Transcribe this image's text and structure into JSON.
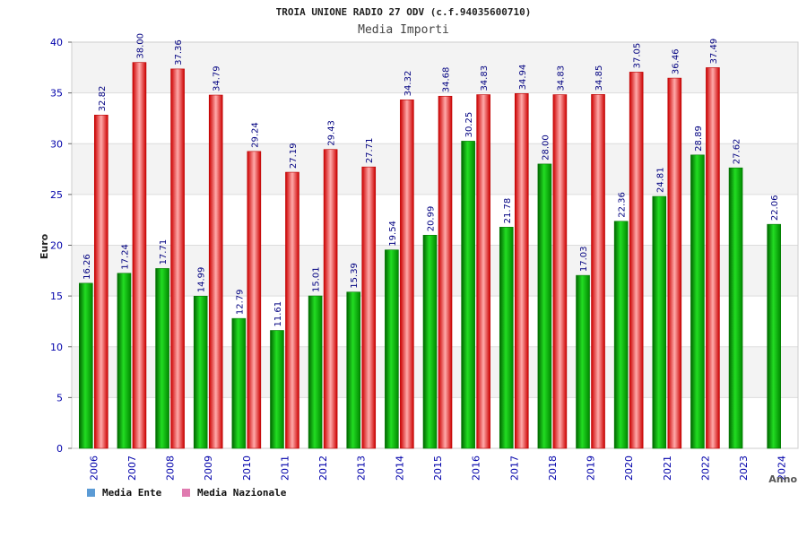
{
  "chart_data": {
    "type": "bar",
    "title": "TROIA UNIONE RADIO 27 ODV (c.f.94035600710)",
    "subtitle": "Media Importi",
    "xlabel": "Anno",
    "ylabel": "Euro",
    "ylim": [
      0,
      40
    ],
    "yticks": [
      0,
      5,
      10,
      15,
      20,
      25,
      30,
      35,
      40
    ],
    "grid": true,
    "legend_position": "bottom-left",
    "categories": [
      "2006",
      "2007",
      "2008",
      "2009",
      "2010",
      "2011",
      "2012",
      "2013",
      "2014",
      "2015",
      "2016",
      "2017",
      "2018",
      "2019",
      "2020",
      "2021",
      "2022",
      "2023",
      "2024"
    ],
    "series": [
      {
        "name": "Media Ente",
        "color": "#00bb00",
        "legend_color": "#5b9bd5",
        "values": [
          16.26,
          17.24,
          17.71,
          14.99,
          12.79,
          11.61,
          15.01,
          15.39,
          19.54,
          20.99,
          30.25,
          21.78,
          28.0,
          17.03,
          22.36,
          24.81,
          28.89,
          27.62,
          22.06
        ],
        "labels": [
          "16.26",
          "17.24",
          "17.71",
          "14.99",
          "12.79",
          "11.61",
          "15.01",
          "15.39",
          "19.54",
          "20.99",
          "30.25",
          "21.78",
          "28.00",
          "17.03",
          "22.36",
          "24.81",
          "28.89",
          "27.62",
          "22.06"
        ]
      },
      {
        "name": "Media Nazionale",
        "color": "#ee2222",
        "legend_color": "#e07bb0",
        "values": [
          32.82,
          38.0,
          37.36,
          34.79,
          29.24,
          27.19,
          29.43,
          27.71,
          34.32,
          34.68,
          34.83,
          34.94,
          34.83,
          34.85,
          37.05,
          36.46,
          37.49,
          null,
          null
        ],
        "labels": [
          "32.82",
          "38.00",
          "37.36",
          "34.79",
          "29.24",
          "27.19",
          "29.43",
          "27.71",
          "34.32",
          "34.68",
          "34.83",
          "34.94",
          "34.83",
          "34.85",
          "37.05",
          "36.46",
          "37.49",
          null,
          null
        ]
      }
    ]
  }
}
